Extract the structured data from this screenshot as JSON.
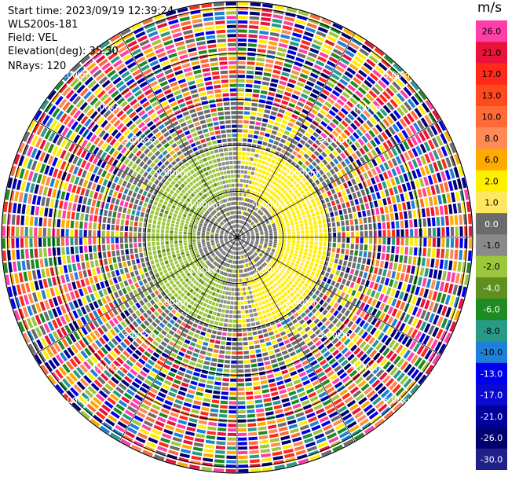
{
  "header": {
    "start_time": "Start time: 2023/09/19 12:39:24",
    "instrument": "WLS200s-181",
    "field": "Field: VEL",
    "elevation": "Elevation(deg): 35.30",
    "nrays": "NRays: 120"
  },
  "colorbar": {
    "unit": "m/s",
    "bins": [
      {
        "label": "26.0",
        "color": "#ff3ea8"
      },
      {
        "label": "21.0",
        "color": "#e8123a"
      },
      {
        "label": "17.0",
        "color": "#ff2a1a"
      },
      {
        "label": "13.0",
        "color": "#ff4a1e"
      },
      {
        "label": "10.0",
        "color": "#ff6a36"
      },
      {
        "label": "8.0",
        "color": "#ff8a55"
      },
      {
        "label": "6.0",
        "color": "#ffaa00"
      },
      {
        "label": "2.0",
        "color": "#ffee00"
      },
      {
        "label": "1.0",
        "color": "#ffe860"
      },
      {
        "label": "0.0",
        "color": "#6b6b6b"
      },
      {
        "label": "-1.0",
        "color": "#8a8a8a"
      },
      {
        "label": "-2.0",
        "color": "#9cc63c"
      },
      {
        "label": "-4.0",
        "color": "#5f8f1f"
      },
      {
        "label": "-6.0",
        "color": "#1e8a22"
      },
      {
        "label": "-8.0",
        "color": "#2a9a88"
      },
      {
        "label": "-10.0",
        "color": "#1e80d8"
      },
      {
        "label": "-13.0",
        "color": "#0000ee"
      },
      {
        "label": "-17.0",
        "color": "#0a0ad0"
      },
      {
        "label": "-21.0",
        "color": "#00009a"
      },
      {
        "label": "-26.0",
        "color": "#000070"
      },
      {
        "label": "-30.0",
        "color": "#20208a"
      }
    ]
  },
  "plot": {
    "rings_km": [
      "1.00km",
      "2.00km",
      "3.00km",
      "4.00km",
      "5.00km"
    ],
    "num_rays": 120
  }
}
